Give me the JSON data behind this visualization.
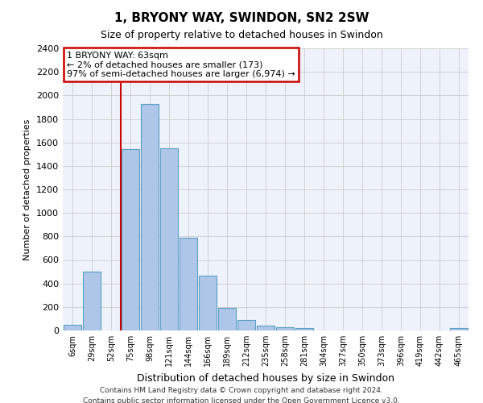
{
  "title": "1, BRYONY WAY, SWINDON, SN2 2SW",
  "subtitle": "Size of property relative to detached houses in Swindon",
  "xlabel": "Distribution of detached houses by size in Swindon",
  "ylabel": "Number of detached properties",
  "categories": [
    "6sqm",
    "29sqm",
    "52sqm",
    "75sqm",
    "98sqm",
    "121sqm",
    "144sqm",
    "166sqm",
    "189sqm",
    "212sqm",
    "235sqm",
    "258sqm",
    "281sqm",
    "304sqm",
    "327sqm",
    "350sqm",
    "373sqm",
    "396sqm",
    "419sqm",
    "442sqm",
    "465sqm"
  ],
  "values": [
    50,
    500,
    0,
    1540,
    1930,
    1550,
    790,
    465,
    195,
    90,
    40,
    30,
    20,
    0,
    0,
    0,
    0,
    0,
    0,
    0,
    20
  ],
  "bar_color": "#aec6e8",
  "bar_edge_color": "#5a9fc4",
  "annotation_text_line1": "1 BRYONY WAY: 63sqm",
  "annotation_text_line2": "← 2% of detached houses are smaller (173)",
  "annotation_text_line3": "97% of semi-detached houses are larger (6,974) →",
  "annotation_box_color": "#ffffff",
  "annotation_box_edge_color": "#cc0000",
  "vline_color": "#cc0000",
  "vline_x_category": "75sqm",
  "ylim": [
    0,
    2400
  ],
  "yticks": [
    0,
    200,
    400,
    600,
    800,
    1000,
    1200,
    1400,
    1600,
    1800,
    2000,
    2200,
    2400
  ],
  "bg_color": "#eef2fb",
  "footer_line1": "Contains HM Land Registry data © Crown copyright and database right 2024.",
  "footer_line2": "Contains public sector information licensed under the Open Government Licence v3.0."
}
